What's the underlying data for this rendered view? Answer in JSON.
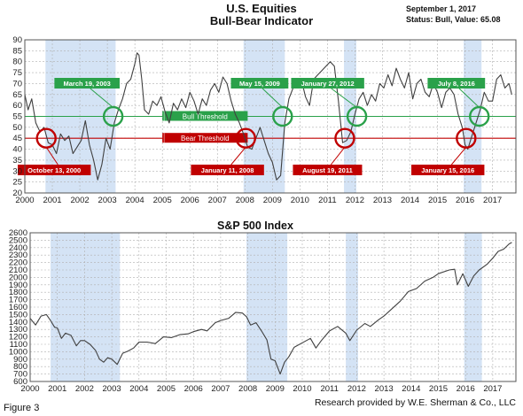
{
  "header": {
    "title_line1": "U.S. Equities",
    "title_line2": "Bull-Bear Indicator",
    "date": "September 1, 2017",
    "status": "Status: Bull, Value: 65.08"
  },
  "footer": {
    "figure_label": "Figure 3",
    "credit": "Research provided by W.E. Sherman & Co., LLC"
  },
  "colors": {
    "bull_green": "#2aa14a",
    "bear_red": "#c00000",
    "shade_blue": "#c5d9f1",
    "line": "#404040",
    "grid": "#b0b0b0"
  },
  "chart_data": [
    {
      "type": "line",
      "name": "bull-bear",
      "title": "",
      "xlabel": "",
      "ylabel": "",
      "xlim": [
        2000.0,
        2017.85
      ],
      "ylim": [
        20,
        90
      ],
      "x_ticks": [
        "2000",
        "2001",
        "2002",
        "2003",
        "2004",
        "2005",
        "2006",
        "2007",
        "2008",
        "2009",
        "2010",
        "2011",
        "2012",
        "2013",
        "2014",
        "2015",
        "2016",
        "2017"
      ],
      "y_ticks": [
        20,
        25,
        30,
        35,
        40,
        45,
        50,
        55,
        60,
        65,
        70,
        75,
        80,
        85,
        90
      ],
      "grid": true,
      "shaded_periods": [
        [
          2000.75,
          2003.3
        ],
        [
          2007.95,
          2009.45
        ],
        [
          2011.6,
          2012.05
        ],
        [
          2015.95,
          2016.6
        ]
      ],
      "thresholds": [
        {
          "label": "Bull Threshold",
          "value": 55,
          "color": "#2aa14a"
        },
        {
          "label": "Bear Threshold",
          "value": 45,
          "color": "#c00000"
        }
      ],
      "annotations": [
        {
          "label": "October 13, 2000",
          "x": 2000.78,
          "y": 45,
          "kind": "bear"
        },
        {
          "label": "March 19, 2003",
          "x": 2003.21,
          "y": 55,
          "kind": "bull"
        },
        {
          "label": "January 11, 2008",
          "x": 2008.03,
          "y": 45,
          "kind": "bear"
        },
        {
          "label": "May 15, 2009",
          "x": 2009.37,
          "y": 55,
          "kind": "bull"
        },
        {
          "label": "August 19, 2011",
          "x": 2011.63,
          "y": 45,
          "kind": "bear"
        },
        {
          "label": "January 27, 2012",
          "x": 2012.07,
          "y": 55,
          "kind": "bull"
        },
        {
          "label": "January 15, 2016",
          "x": 2016.04,
          "y": 45,
          "kind": "bear"
        },
        {
          "label": "July 8, 2016",
          "x": 2016.52,
          "y": 55,
          "kind": "bull"
        }
      ],
      "series": [
        {
          "x": [
            2000.0,
            2000.12,
            2000.25,
            2000.4,
            2000.55,
            2000.7,
            2000.85,
            2001.0,
            2001.15,
            2001.3,
            2001.45,
            2001.6,
            2001.75,
            2001.9,
            2002.05,
            2002.2,
            2002.35,
            2002.5,
            2002.65,
            2002.8,
            2002.95,
            2003.1,
            2003.25,
            2003.4,
            2003.55,
            2003.7,
            2003.85,
            2004.0,
            2004.08,
            2004.15,
            2004.25,
            2004.35,
            2004.5,
            2004.65,
            2004.8,
            2004.95,
            2005.1,
            2005.25,
            2005.4,
            2005.55,
            2005.7,
            2005.85,
            2006.0,
            2006.15,
            2006.3,
            2006.45,
            2006.6,
            2006.75,
            2006.9,
            2007.05,
            2007.2,
            2007.35,
            2007.5,
            2007.65,
            2007.8,
            2007.95,
            2008.1,
            2008.25,
            2008.4,
            2008.55,
            2008.7,
            2008.85,
            2009.0,
            2009.15,
            2009.3,
            2009.45,
            2009.6,
            2009.75,
            2009.9,
            2010.05,
            2010.2,
            2010.35,
            2010.5,
            2010.65,
            2010.8,
            2010.95,
            2011.1,
            2011.25,
            2011.4,
            2011.55,
            2011.7,
            2011.85,
            2012.0,
            2012.15,
            2012.3,
            2012.45,
            2012.6,
            2012.75,
            2012.9,
            2013.05,
            2013.2,
            2013.35,
            2013.5,
            2013.65,
            2013.8,
            2013.95,
            2014.1,
            2014.25,
            2014.4,
            2014.55,
            2014.7,
            2014.85,
            2015.0,
            2015.15,
            2015.3,
            2015.45,
            2015.6,
            2015.75,
            2015.9,
            2016.0,
            2016.1,
            2016.25,
            2016.4,
            2016.55,
            2016.7,
            2016.85,
            2017.0,
            2017.15,
            2017.3,
            2017.45,
            2017.6,
            2017.7
          ],
          "y": [
            65,
            58,
            63,
            52,
            48,
            50,
            43,
            42,
            38,
            47,
            44,
            46,
            38,
            41,
            44,
            53,
            42,
            35,
            26,
            33,
            45,
            40,
            52,
            58,
            63,
            70,
            72,
            79,
            84,
            83,
            72,
            58,
            56,
            62,
            60,
            64,
            57,
            52,
            61,
            58,
            63,
            59,
            66,
            62,
            56,
            63,
            60,
            67,
            70,
            66,
            73,
            70,
            62,
            56,
            52,
            47,
            41,
            40,
            45,
            50,
            44,
            38,
            34,
            26,
            28,
            52,
            63,
            68,
            70,
            72,
            64,
            60,
            72,
            74,
            76,
            78,
            80,
            78,
            62,
            43,
            44,
            48,
            56,
            63,
            66,
            60,
            65,
            62,
            70,
            68,
            74,
            69,
            77,
            72,
            68,
            75,
            63,
            70,
            72,
            66,
            64,
            70,
            66,
            59,
            66,
            68,
            65,
            56,
            50,
            42,
            40,
            46,
            52,
            58,
            66,
            62,
            62,
            72,
            74,
            68,
            70,
            65
          ]
        }
      ]
    },
    {
      "type": "line",
      "name": "sp500",
      "title": "S&P 500 Index",
      "xlabel": "",
      "ylabel": "",
      "xlim": [
        2000.0,
        2017.85
      ],
      "ylim": [
        600,
        2600
      ],
      "x_ticks": [
        "2000",
        "2001",
        "2002",
        "2003",
        "2004",
        "2005",
        "2006",
        "2007",
        "2008",
        "2009",
        "2010",
        "2011",
        "2012",
        "2013",
        "2014",
        "2015",
        "2016",
        "2017"
      ],
      "y_ticks": [
        600,
        700,
        800,
        900,
        1000,
        1100,
        1200,
        1300,
        1400,
        1500,
        1600,
        1700,
        1800,
        1900,
        2000,
        2100,
        2200,
        2300,
        2400,
        2500,
        2600
      ],
      "grid": true,
      "shaded_periods": [
        [
          2000.75,
          2003.3
        ],
        [
          2007.95,
          2009.45
        ],
        [
          2011.6,
          2012.05
        ],
        [
          2015.95,
          2016.6
        ]
      ],
      "series": [
        {
          "x": [
            2000.0,
            2000.2,
            2000.4,
            2000.6,
            2000.75,
            2000.9,
            2001.0,
            2001.15,
            2001.3,
            2001.5,
            2001.7,
            2001.85,
            2002.0,
            2002.2,
            2002.4,
            2002.55,
            2002.7,
            2002.85,
            2003.0,
            2003.2,
            2003.4,
            2003.6,
            2003.8,
            2004.0,
            2004.3,
            2004.6,
            2004.9,
            2005.2,
            2005.5,
            2005.8,
            2006.0,
            2006.3,
            2006.5,
            2006.8,
            2007.0,
            2007.3,
            2007.55,
            2007.8,
            2007.95,
            2008.1,
            2008.3,
            2008.5,
            2008.7,
            2008.85,
            2009.0,
            2009.19,
            2009.35,
            2009.5,
            2009.7,
            2010.0,
            2010.3,
            2010.5,
            2010.7,
            2011.0,
            2011.3,
            2011.6,
            2011.75,
            2012.0,
            2012.3,
            2012.5,
            2012.8,
            2013.0,
            2013.3,
            2013.6,
            2013.9,
            2014.2,
            2014.5,
            2014.8,
            2015.0,
            2015.4,
            2015.6,
            2015.7,
            2015.9,
            2016.1,
            2016.3,
            2016.5,
            2016.8,
            2017.0,
            2017.2,
            2017.4,
            2017.6,
            2017.7
          ],
          "y": [
            1450,
            1360,
            1480,
            1500,
            1420,
            1330,
            1320,
            1180,
            1250,
            1220,
            1080,
            1150,
            1150,
            1100,
            1020,
            900,
            860,
            920,
            900,
            830,
            980,
            1010,
            1050,
            1130,
            1130,
            1110,
            1200,
            1190,
            1230,
            1240,
            1270,
            1300,
            1280,
            1390,
            1420,
            1450,
            1530,
            1520,
            1470,
            1360,
            1390,
            1280,
            1160,
            900,
            880,
            700,
            860,
            930,
            1060,
            1120,
            1180,
            1050,
            1150,
            1280,
            1340,
            1250,
            1150,
            1290,
            1380,
            1340,
            1430,
            1480,
            1580,
            1680,
            1810,
            1850,
            1950,
            2000,
            2050,
            2100,
            2110,
            1900,
            2050,
            1880,
            2020,
            2100,
            2180,
            2260,
            2350,
            2380,
            2450,
            2470
          ]
        }
      ]
    }
  ]
}
